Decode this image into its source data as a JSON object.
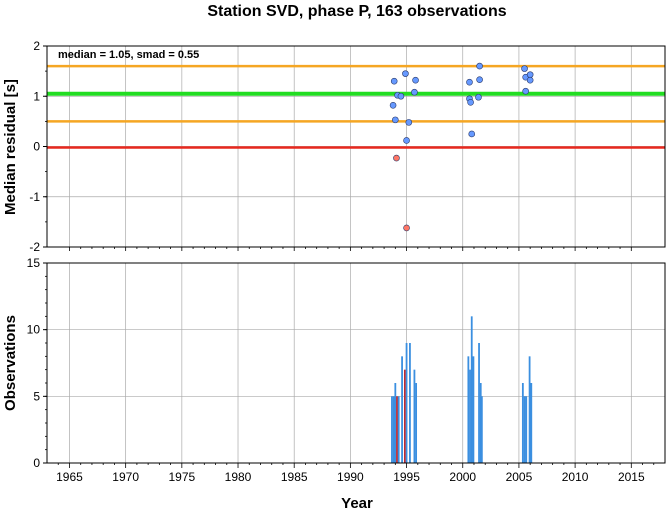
{
  "title": "Station SVD, phase P, 163 observations",
  "annotation": "median = 1.05, smad = 0.55",
  "chart_data": [
    {
      "type": "scatter",
      "ylabel": "Median residual [s]",
      "xlim": [
        1963,
        2018
      ],
      "ylim": [
        -2,
        2
      ],
      "yticks": [
        -2,
        -1,
        0,
        1,
        2
      ],
      "grid": true,
      "reference_lines": [
        {
          "y": 1.6,
          "color": "#f5a623"
        },
        {
          "y": 1.05,
          "color": "#22dd22"
        },
        {
          "y": 0.5,
          "color": "#f5a623"
        },
        {
          "y": -0.02,
          "color": "#e8281e"
        }
      ],
      "points": [
        {
          "x": 1993.8,
          "y": 0.82,
          "color": "#6699ff"
        },
        {
          "x": 1993.9,
          "y": 1.3,
          "color": "#6699ff"
        },
        {
          "x": 1994.0,
          "y": 0.53,
          "color": "#6699ff"
        },
        {
          "x": 1994.2,
          "y": 1.02,
          "color": "#6699ff"
        },
        {
          "x": 1994.5,
          "y": 1.0,
          "color": "#6699ff"
        },
        {
          "x": 1994.9,
          "y": 1.45,
          "color": "#6699ff"
        },
        {
          "x": 1995.0,
          "y": 0.12,
          "color": "#6699ff"
        },
        {
          "x": 1995.2,
          "y": 0.48,
          "color": "#6699ff"
        },
        {
          "x": 1995.7,
          "y": 1.08,
          "color": "#6699ff"
        },
        {
          "x": 1995.8,
          "y": 1.32,
          "color": "#6699ff"
        },
        {
          "x": 1994.1,
          "y": -0.23,
          "color": "#ff7766"
        },
        {
          "x": 1995.0,
          "y": -1.62,
          "color": "#ff7766"
        },
        {
          "x": 2000.6,
          "y": 1.28,
          "color": "#6699ff"
        },
        {
          "x": 2000.6,
          "y": 0.95,
          "color": "#6699ff"
        },
        {
          "x": 2000.7,
          "y": 0.88,
          "color": "#6699ff"
        },
        {
          "x": 2000.8,
          "y": 0.25,
          "color": "#6699ff"
        },
        {
          "x": 2001.5,
          "y": 1.6,
          "color": "#6699ff"
        },
        {
          "x": 2001.5,
          "y": 1.33,
          "color": "#6699ff"
        },
        {
          "x": 2001.4,
          "y": 0.98,
          "color": "#6699ff"
        },
        {
          "x": 2005.5,
          "y": 1.55,
          "color": "#6699ff"
        },
        {
          "x": 2005.6,
          "y": 1.38,
          "color": "#6699ff"
        },
        {
          "x": 2005.6,
          "y": 1.1,
          "color": "#6699ff"
        },
        {
          "x": 2006.0,
          "y": 1.43,
          "color": "#6699ff"
        },
        {
          "x": 2006.0,
          "y": 1.32,
          "color": "#6699ff"
        }
      ]
    },
    {
      "type": "bar",
      "xlabel": "Year",
      "ylabel": "Observations",
      "xlim": [
        1963,
        2018
      ],
      "ylim": [
        0,
        15
      ],
      "xticks": [
        1965,
        1970,
        1975,
        1980,
        1985,
        1990,
        1995,
        2000,
        2005,
        2010,
        2015
      ],
      "yticks": [
        0,
        5,
        10,
        15
      ],
      "grid": true,
      "bars": [
        {
          "x": 1993.7,
          "value": 5,
          "color": "#3b8fe0"
        },
        {
          "x": 1993.85,
          "value": 5,
          "color": "#3b8fe0"
        },
        {
          "x": 1994.0,
          "value": 6,
          "color": "#3b8fe0"
        },
        {
          "x": 1994.15,
          "value": 5,
          "color": "#c0282e"
        },
        {
          "x": 1994.3,
          "value": 5,
          "color": "#3b8fe0"
        },
        {
          "x": 1994.6,
          "value": 8,
          "color": "#3b8fe0"
        },
        {
          "x": 1994.85,
          "value": 7,
          "color": "#c0282e"
        },
        {
          "x": 1995.0,
          "value": 9,
          "color": "#3b8fe0"
        },
        {
          "x": 1995.3,
          "value": 9,
          "color": "#3b8fe0"
        },
        {
          "x": 1995.7,
          "value": 7,
          "color": "#3b8fe0"
        },
        {
          "x": 1995.85,
          "value": 6,
          "color": "#3b8fe0"
        },
        {
          "x": 2000.5,
          "value": 8,
          "color": "#3b8fe0"
        },
        {
          "x": 2000.65,
          "value": 7,
          "color": "#3b8fe0"
        },
        {
          "x": 2000.8,
          "value": 11,
          "color": "#3b8fe0"
        },
        {
          "x": 2000.95,
          "value": 8,
          "color": "#3b8fe0"
        },
        {
          "x": 2001.45,
          "value": 9,
          "color": "#3b8fe0"
        },
        {
          "x": 2001.6,
          "value": 6,
          "color": "#3b8fe0"
        },
        {
          "x": 2001.7,
          "value": 5,
          "color": "#3b8fe0"
        },
        {
          "x": 2005.35,
          "value": 6,
          "color": "#3b8fe0"
        },
        {
          "x": 2005.5,
          "value": 5,
          "color": "#3b8fe0"
        },
        {
          "x": 2005.65,
          "value": 5,
          "color": "#3b8fe0"
        },
        {
          "x": 2005.95,
          "value": 8,
          "color": "#3b8fe0"
        },
        {
          "x": 2006.1,
          "value": 6,
          "color": "#3b8fe0"
        }
      ]
    }
  ]
}
